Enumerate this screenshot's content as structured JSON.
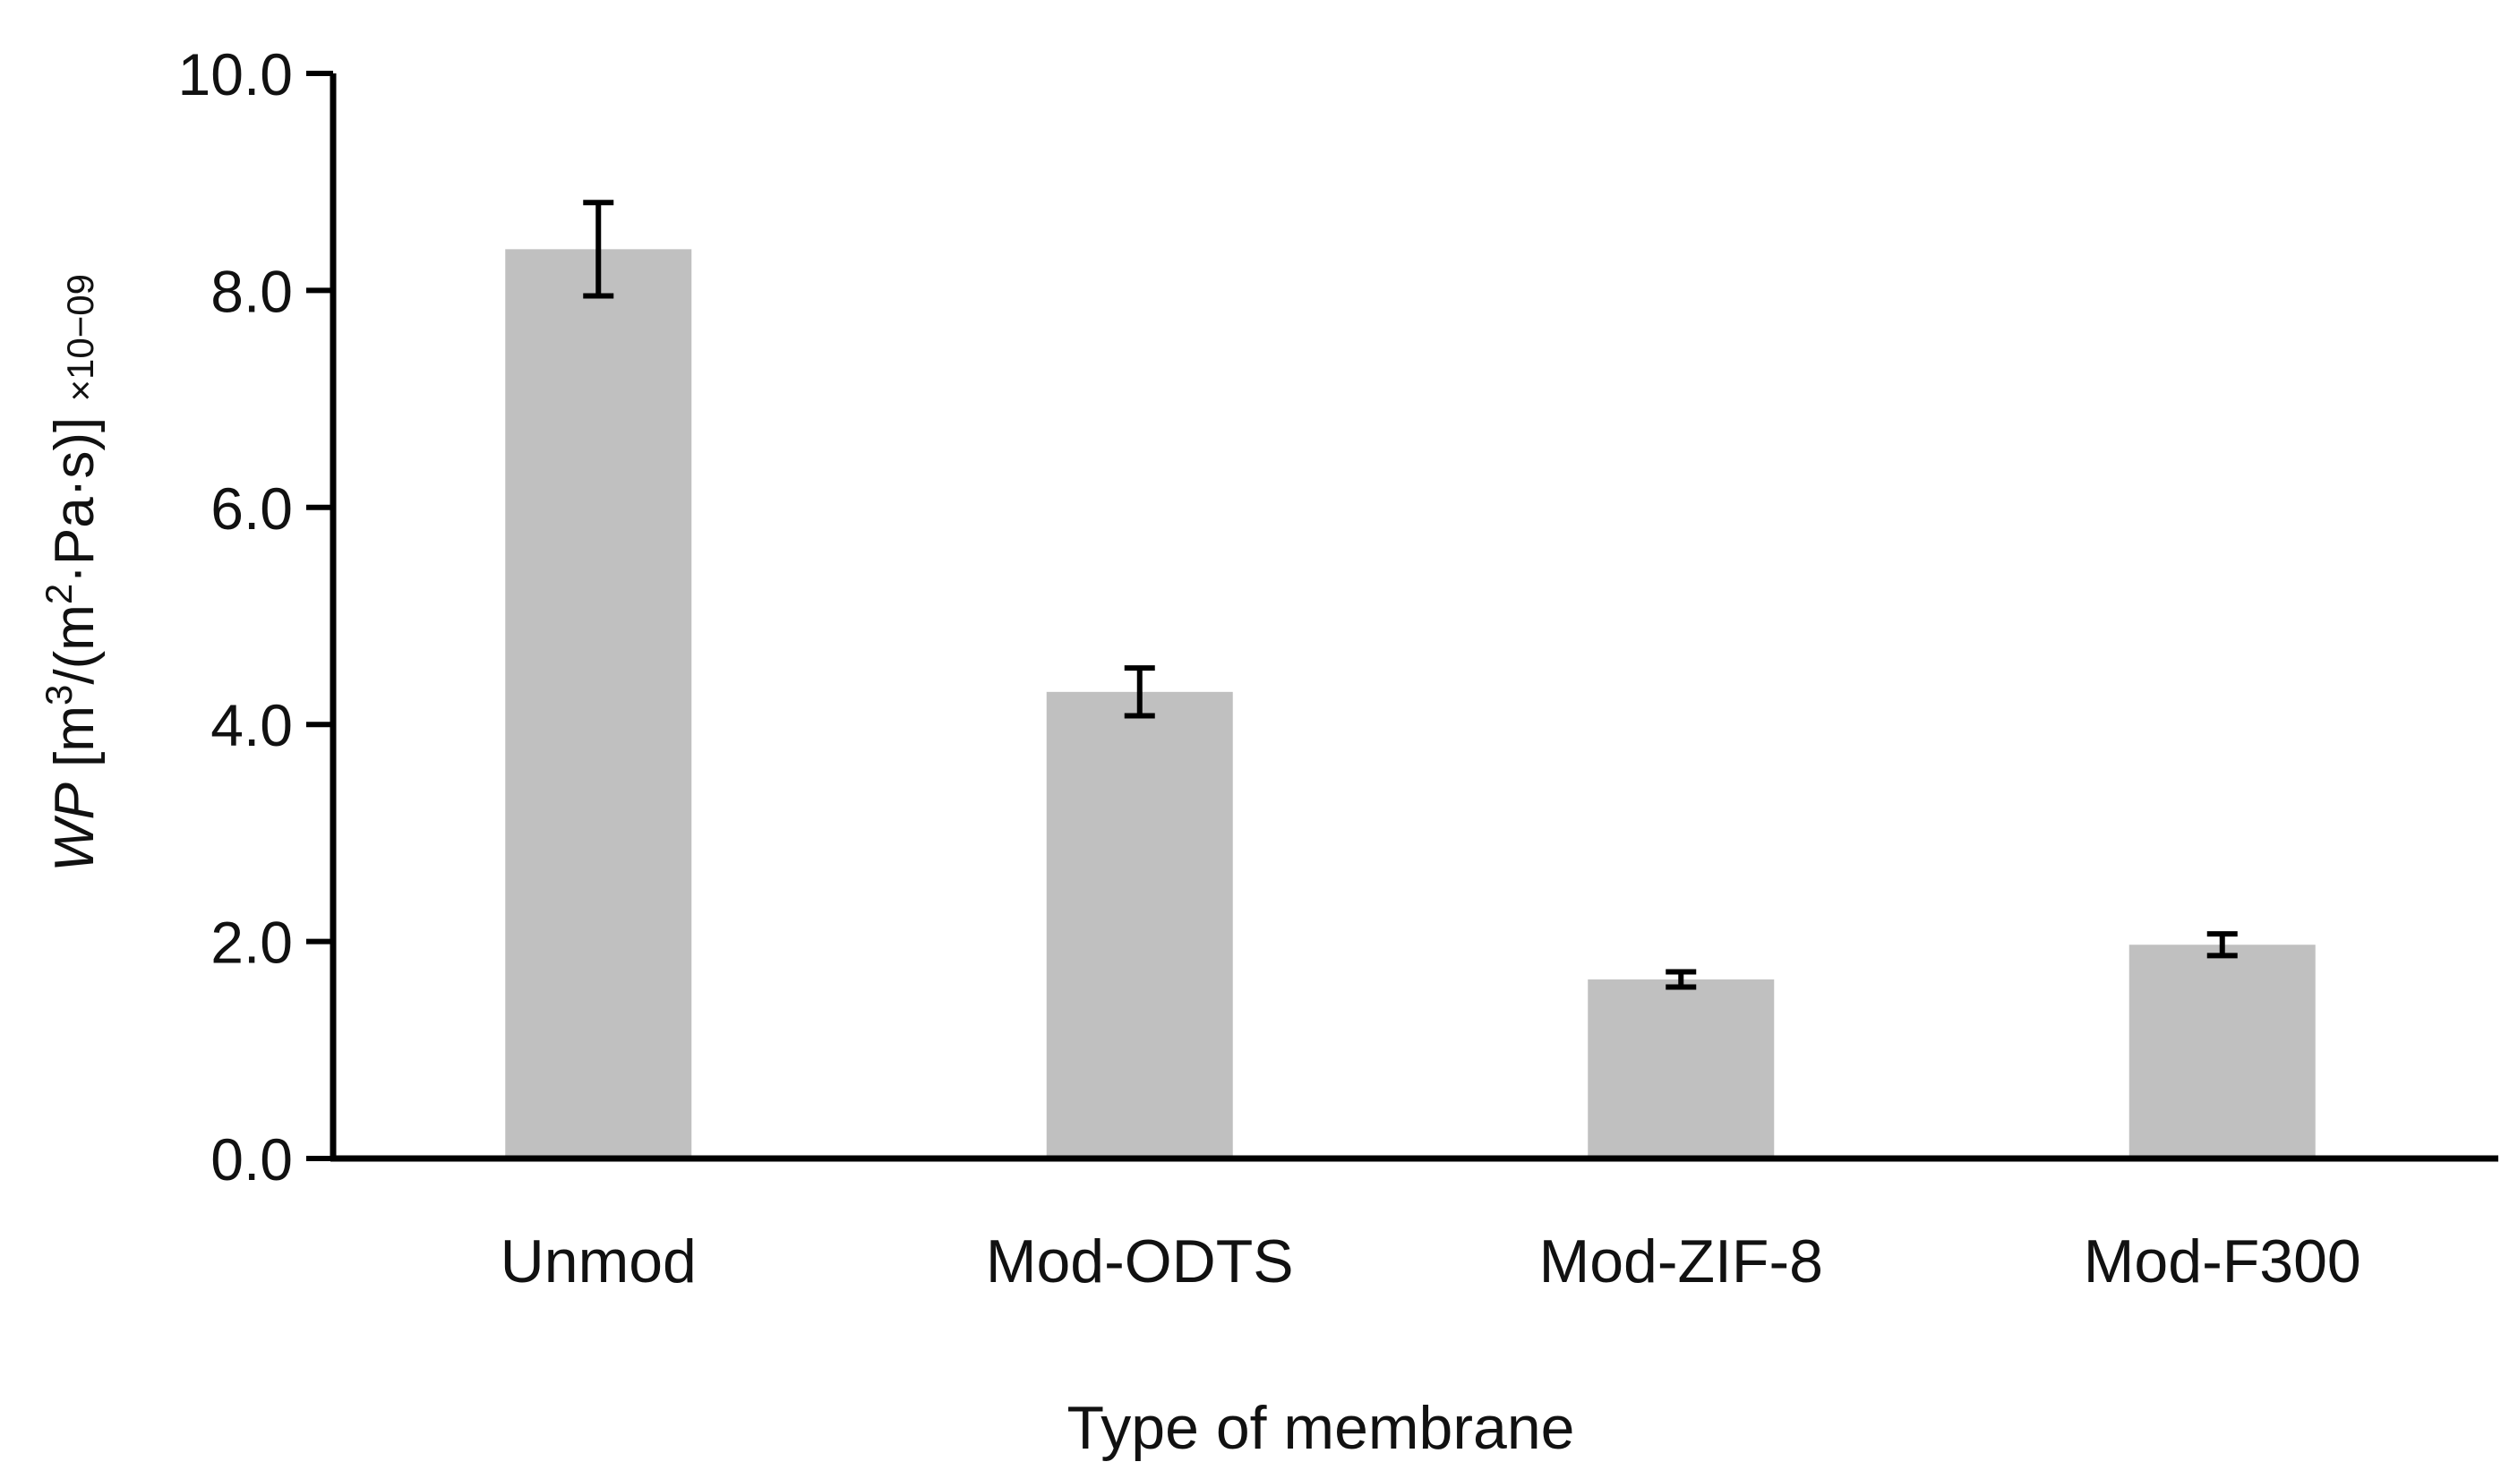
{
  "chart_data": {
    "type": "bar",
    "title": "",
    "xlabel": "Type of membrane",
    "ylabel": {
      "var": "WP",
      "unit_open": " [m",
      "sup1": "3",
      "unit_mid": "/(m",
      "sup2": "2",
      "unit_close": "·Pa·s)] ",
      "scale": "×10−09"
    },
    "categories": [
      "Unmod",
      "Mod-ODTS",
      "Mod-ZIF-8",
      "Mod-F300"
    ],
    "values": [
      8.38,
      4.3,
      1.65,
      1.97
    ],
    "errors": [
      0.43,
      0.22,
      0.07,
      0.1
    ],
    "ylim": [
      0,
      10
    ],
    "yticks": [
      0,
      2,
      4,
      6,
      8,
      10
    ],
    "ytick_labels": [
      "0.0",
      "2.0",
      "4.0",
      "6.0",
      "8.0",
      "10.0"
    ],
    "bar_color": "#c0c0c0",
    "axis_color": "#000000",
    "grid": false,
    "legend": "none"
  }
}
